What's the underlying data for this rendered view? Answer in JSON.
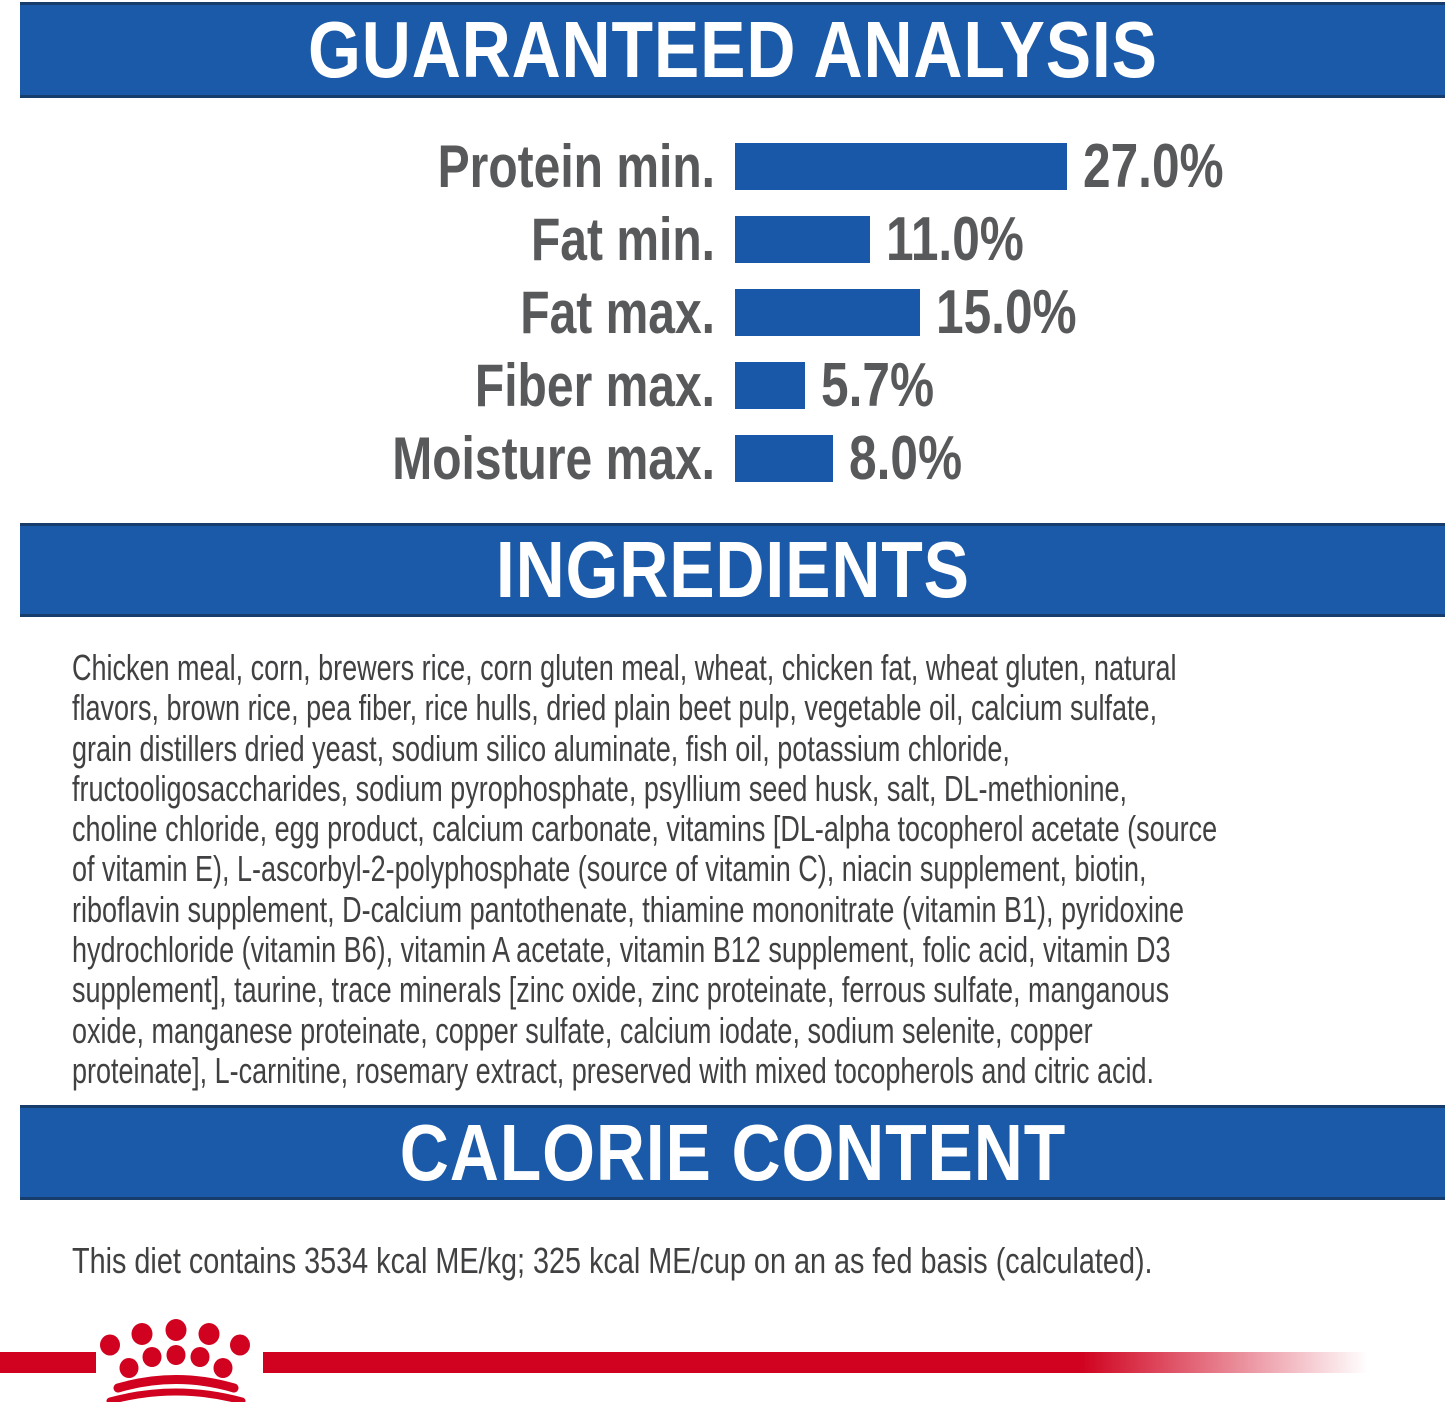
{
  "colors": {
    "header_blue": "#1b5aa8",
    "header_border": "#163d6b",
    "bar_blue": "#1958a8",
    "label_gray": "#58595b",
    "body_text": "#414042",
    "brand_red": "#d0021f"
  },
  "sections": {
    "guaranteed_analysis": {
      "title": "GUARANTEED ANALYSIS"
    },
    "ingredients": {
      "title": "INGREDIENTS",
      "lines": [
        "Chicken meal, corn, brewers rice, corn gluten meal, wheat, chicken fat, wheat gluten, natural",
        "flavors, brown rice, pea fiber, rice hulls, dried plain beet pulp, vegetable oil, calcium sulfate,",
        "grain distillers dried yeast, sodium silico aluminate, fish oil, potassium chloride,",
        "fructooligosaccharides, sodium pyrophosphate, psyllium seed husk, salt, DL-methionine,",
        "choline chloride, egg product, calcium carbonate, vitamins [DL-alpha tocopherol acetate (source",
        "of vitamin E), L-ascorbyl-2-polyphosphate (source of vitamin C), niacin supplement, biotin,",
        "riboflavin supplement, D-calcium pantothenate, thiamine mononitrate (vitamin B1), pyridoxine",
        "hydrochloride (vitamin B6), vitamin A acetate, vitamin B12 supplement, folic acid, vitamin D3",
        "supplement], taurine, trace minerals [zinc oxide, zinc proteinate, ferrous sulfate, manganous",
        "oxide, manganese proteinate, copper sulfate, calcium iodate, sodium selenite, copper",
        "proteinate], L-carnitine, rosemary extract, preserved with mixed tocopherols and citric acid."
      ]
    },
    "calorie_content": {
      "title": "CALORIE CONTENT",
      "text": "This diet contains 3534 kcal ME/kg; 325 kcal ME/cup on an as fed basis (calculated)."
    }
  },
  "chart_data": {
    "type": "bar",
    "orientation": "horizontal",
    "title": "GUARANTEED ANALYSIS",
    "unit": "%",
    "categories": [
      "Protein min.",
      "Fat min.",
      "Fat max.",
      "Fiber max.",
      "Moisture max."
    ],
    "values": [
      27.0,
      11.0,
      15.0,
      5.7,
      8.0
    ],
    "value_labels": [
      "27.0%",
      "11.0%",
      "15.0%",
      "5.7%",
      "8.0%"
    ],
    "bar_color": "#1958a8",
    "legend": "none",
    "grid": false
  },
  "footer": {
    "logo": "royal-canin-crown"
  }
}
